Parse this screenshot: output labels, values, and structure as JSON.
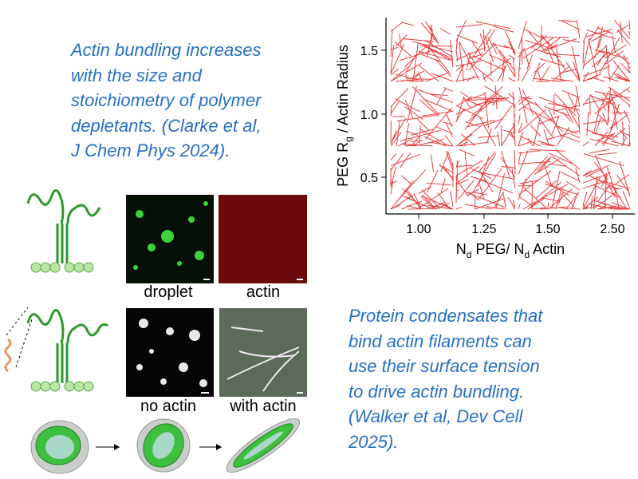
{
  "text_top": [
    "Actin bundling increases",
    "with the size and",
    "stoichiometry of polymer",
    "depletants. (Clarke et al,",
    "J Chem Phys 2024)."
  ],
  "text_bottom": [
    "Protein condensates that",
    "bind actin filaments can",
    "use their surface tension",
    "to drive actin bundling.",
    "(Walker et al, Dev Cell",
    "2025)."
  ],
  "plot": {
    "y_label": [
      "PEG R",
      "g",
      " / Actin Radius"
    ],
    "x_label": [
      "N",
      "d",
      " PEG/ N",
      "d",
      " Actin"
    ],
    "y_ticks": [
      "1.5",
      "1.0",
      "0.5"
    ],
    "x_ticks": [
      "1.00",
      "1.25",
      "1.50",
      "2.50"
    ]
  },
  "panels": [
    "droplet",
    "actin",
    "no actin",
    "with actin"
  ]
}
